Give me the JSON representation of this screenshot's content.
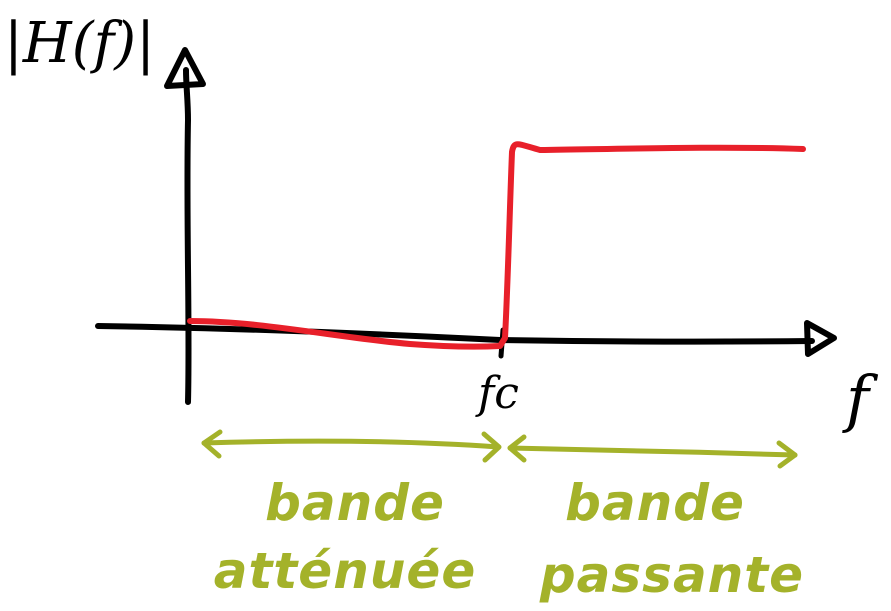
{
  "axes": {
    "y_label": "|H(f)|",
    "x_label": "f"
  },
  "cutoff": {
    "label": "fc"
  },
  "bands": {
    "stop": {
      "line1": "bande",
      "line2": "atténuée"
    },
    "pass": {
      "line1": "bande",
      "line2": "passante"
    }
  },
  "colors": {
    "axes": "#000000",
    "response": "#e8202a",
    "bands": "#a4b22a"
  }
}
